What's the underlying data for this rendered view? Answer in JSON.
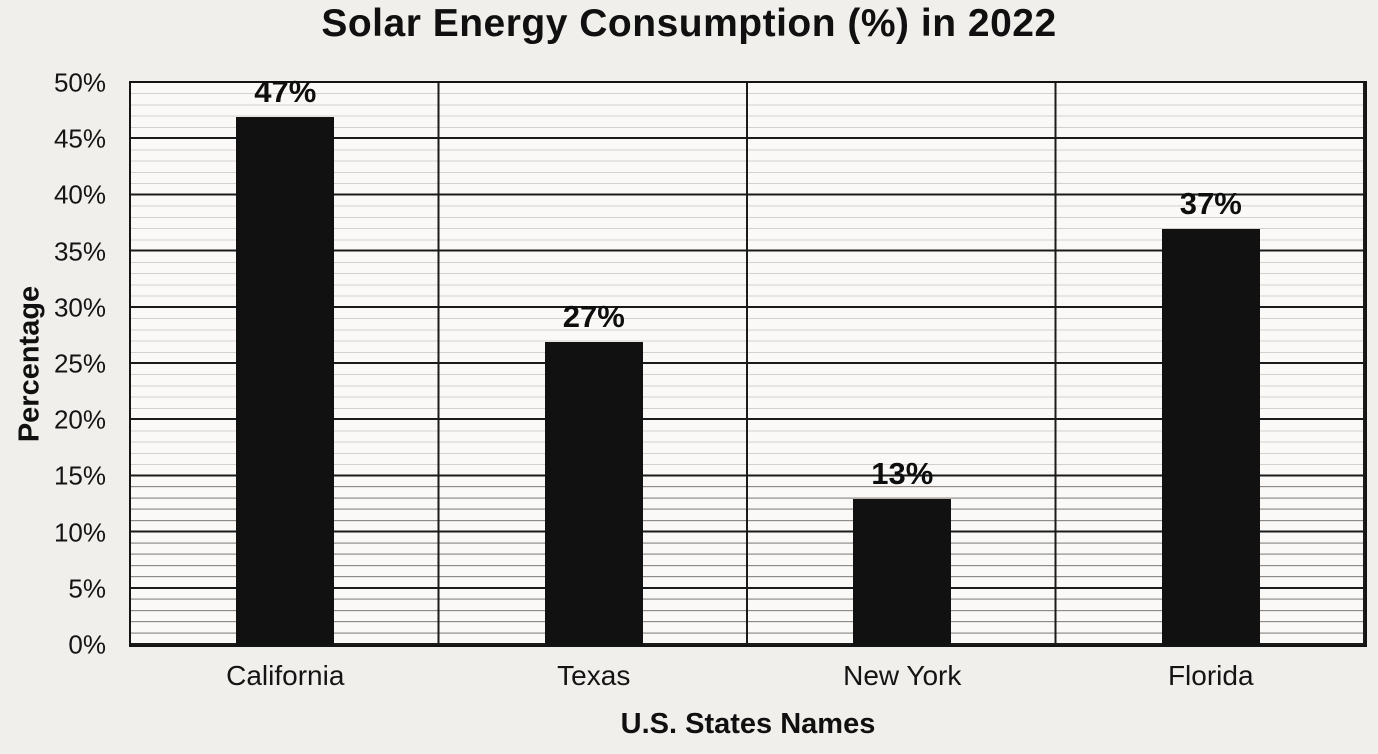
{
  "chart_data": {
    "type": "bar",
    "title": "Solar Energy Consumption (%) in 2022",
    "xlabel": "U.S. States Names",
    "ylabel": "Percentage",
    "categories": [
      "California",
      "Texas",
      "New York",
      "Florida"
    ],
    "values": [
      47,
      27,
      13,
      37
    ],
    "data_labels": [
      "47%",
      "27%",
      "13%",
      "37%"
    ],
    "ylim": [
      0,
      50
    ],
    "ytick_step_major": 5,
    "ytick_step_minor": 1,
    "ytick_labels_top_to_bottom": [
      "50%",
      "45%",
      "40%",
      "35%",
      "30%",
      "25%",
      "20%",
      "15%",
      "10%",
      "5%",
      "0%"
    ],
    "grid": {
      "horizontal_major": true,
      "horizontal_minor": true,
      "vertical_category_separators": true
    },
    "legend_position": "none",
    "colors": {
      "bar": "#111111",
      "major_grid": "#1b1b1b",
      "minor_grid": "#d6d0cb",
      "minor_grid_dark": "#8f8a85",
      "page_background": "#f1efec",
      "plot_background": "#faf9f7",
      "text": "#141414"
    }
  }
}
